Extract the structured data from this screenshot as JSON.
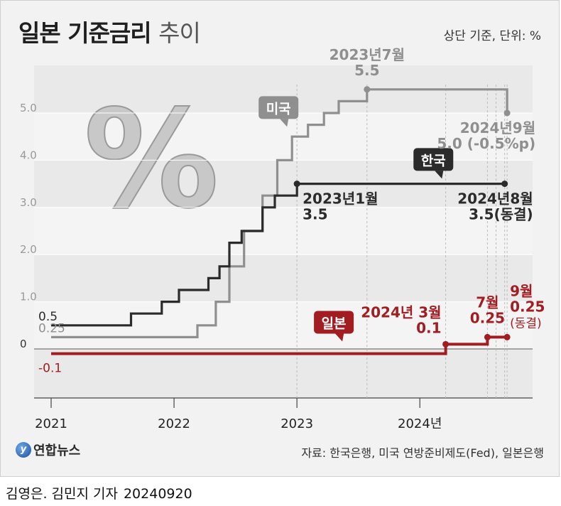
{
  "header": {
    "title_bold": "일본 기준금리",
    "title_light": "추이",
    "unit": "상단 기준, 단위: %"
  },
  "footer": {
    "logo_text": "연합뉴스",
    "source": "자료: 한국은행, 미국 연방준비제도(Fed), 일본은행",
    "byline": "김영은. 김민지 기자",
    "date": "20240920"
  },
  "chart_data": {
    "type": "line",
    "title": "일본 기준금리 추이",
    "step": true,
    "xlim": [
      2021.0,
      2024.9
    ],
    "ylim": [
      -1.0,
      6.0
    ],
    "x_ticks": [
      {
        "value": 2021,
        "label": "2021"
      },
      {
        "value": 2022,
        "label": "2022"
      },
      {
        "value": 2023,
        "label": "2023"
      },
      {
        "value": 2024,
        "label": "2024년"
      }
    ],
    "y_ticks": [
      {
        "value": 5.0,
        "label": "5.0"
      },
      {
        "value": 4.0,
        "label": "4.0"
      },
      {
        "value": 3.0,
        "label": "3.0"
      },
      {
        "value": 2.0,
        "label": "2.0"
      },
      {
        "value": 1.0,
        "label": "1.0"
      },
      {
        "value": 0,
        "label": "0"
      }
    ],
    "series": [
      {
        "name": "미국",
        "color": "#8f8f8f",
        "points": [
          [
            2021.0,
            0.25
          ],
          [
            2022.19,
            0.25
          ],
          [
            2022.19,
            0.5
          ],
          [
            2022.34,
            0.5
          ],
          [
            2022.34,
            1.0
          ],
          [
            2022.45,
            1.0
          ],
          [
            2022.45,
            1.75
          ],
          [
            2022.57,
            1.75
          ],
          [
            2022.57,
            2.5
          ],
          [
            2022.72,
            2.5
          ],
          [
            2022.72,
            3.25
          ],
          [
            2022.84,
            3.25
          ],
          [
            2022.84,
            4.0
          ],
          [
            2022.96,
            4.0
          ],
          [
            2022.96,
            4.5
          ],
          [
            2023.09,
            4.5
          ],
          [
            2023.09,
            4.75
          ],
          [
            2023.22,
            4.75
          ],
          [
            2023.22,
            5.0
          ],
          [
            2023.34,
            5.0
          ],
          [
            2023.34,
            5.25
          ],
          [
            2023.57,
            5.25
          ],
          [
            2023.57,
            5.5
          ],
          [
            2024.71,
            5.5
          ],
          [
            2024.71,
            5.0
          ]
        ]
      },
      {
        "name": "한국",
        "color": "#2b2b2b",
        "points": [
          [
            2021.0,
            0.5
          ],
          [
            2021.65,
            0.5
          ],
          [
            2021.65,
            0.75
          ],
          [
            2021.9,
            0.75
          ],
          [
            2021.9,
            1.0
          ],
          [
            2022.04,
            1.0
          ],
          [
            2022.04,
            1.25
          ],
          [
            2022.28,
            1.25
          ],
          [
            2022.28,
            1.5
          ],
          [
            2022.37,
            1.5
          ],
          [
            2022.37,
            1.75
          ],
          [
            2022.45,
            1.75
          ],
          [
            2022.45,
            2.25
          ],
          [
            2022.55,
            2.25
          ],
          [
            2022.55,
            2.5
          ],
          [
            2022.72,
            2.5
          ],
          [
            2022.72,
            3.0
          ],
          [
            2022.82,
            3.0
          ],
          [
            2022.82,
            3.25
          ],
          [
            2023.0,
            3.25
          ],
          [
            2023.0,
            3.5
          ],
          [
            2024.69,
            3.5
          ]
        ]
      },
      {
        "name": "일본",
        "color": "#a11d22",
        "points": [
          [
            2021.0,
            -0.1
          ],
          [
            2024.21,
            -0.1
          ],
          [
            2024.21,
            0.1
          ],
          [
            2024.55,
            0.1
          ],
          [
            2024.55,
            0.25
          ],
          [
            2024.71,
            0.25
          ]
        ]
      }
    ],
    "series_labels": [
      {
        "name": "미국",
        "x": 2022.85,
        "y": 5.1
      },
      {
        "name": "한국",
        "x": 2024.11,
        "y": 4.0
      },
      {
        "name": "일본",
        "x": 2023.3,
        "y": 0.55
      }
    ],
    "start_labels": [
      {
        "text": "0.5",
        "y": 0.5,
        "color": "#2b2b2b"
      },
      {
        "text": "0.25",
        "y": 0.25,
        "color": "#8f8f8f"
      },
      {
        "text": "-0.1",
        "y": -0.1,
        "color": "#a11d22"
      }
    ],
    "markers": [
      {
        "x": 2023.57,
        "y": 5.5,
        "color": "#8f8f8f"
      },
      {
        "x": 2024.71,
        "y": 5.0,
        "color": "#8f8f8f"
      },
      {
        "x": 2023.0,
        "y": 3.5,
        "color": "#2b2b2b"
      },
      {
        "x": 2024.69,
        "y": 3.5,
        "color": "#2b2b2b"
      },
      {
        "x": 2024.21,
        "y": 0.1,
        "color": "#a11d22"
      },
      {
        "x": 2024.55,
        "y": 0.25,
        "color": "#a11d22"
      },
      {
        "x": 2024.71,
        "y": 0.25,
        "color": "#a11d22"
      }
    ],
    "guides": [
      2023.0,
      2023.57,
      2024.21,
      2024.55,
      2024.62,
      2024.69,
      2024.71
    ],
    "annotations": [
      {
        "lines": [
          "2023년7월",
          "5.5"
        ],
        "x": 2023.57,
        "y": 5.5,
        "color": "#8f8f8f",
        "anchor": "above-center"
      },
      {
        "lines": [
          "2024년9월",
          "5.0 (-0.5%p)"
        ],
        "x": 2024.71,
        "y": 5.0,
        "color": "#8f8f8f",
        "anchor": "below-right"
      },
      {
        "lines": [
          "2023년1월",
          "3.5"
        ],
        "x": 2023.0,
        "y": 3.5,
        "color": "#2b2b2b",
        "anchor": "below-left"
      },
      {
        "lines": [
          "2024년8월",
          "3.5(동결)"
        ],
        "x": 2024.69,
        "y": 3.5,
        "color": "#2b2b2b",
        "anchor": "below-right"
      },
      {
        "lines": [
          "2024년 3월",
          "0.1"
        ],
        "x": 2024.21,
        "y": 0.1,
        "color": "#a11d22",
        "anchor": "above-right"
      },
      {
        "lines": [
          "7월",
          "0.25"
        ],
        "x": 2024.55,
        "y": 0.25,
        "color": "#a11d22",
        "anchor": "above-center"
      },
      {
        "lines": [
          "9월",
          "0.25",
          "(동결)"
        ],
        "x": 2024.71,
        "y": 0.25,
        "color": "#a11d22",
        "anchor": "above-left-stack"
      }
    ],
    "grid": true,
    "legend": "none"
  }
}
